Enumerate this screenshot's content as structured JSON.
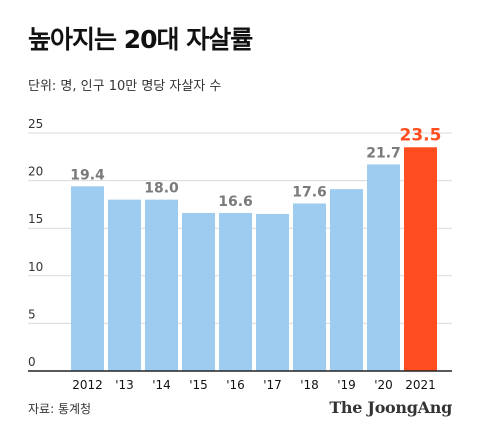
{
  "header": {
    "title": "높아지는 20대 자살률",
    "unit_note": "단위: 명, 인구 10만 명당 자살자 수"
  },
  "footer": {
    "source": "자료: 통계청",
    "brand": "The JoongAng"
  },
  "colors": {
    "bar": "#9dccf0",
    "highlight": "#ff4d1f",
    "gridline": "#d9d9d9",
    "label": "#7a7a7a",
    "axis": "#222222"
  },
  "chart_data": {
    "type": "bar",
    "categories": [
      "2012",
      "'13",
      "'14",
      "'15",
      "'16",
      "'17",
      "'18",
      "'19",
      "'20",
      "2021"
    ],
    "values": [
      19.4,
      18.0,
      18.0,
      16.6,
      16.6,
      16.5,
      17.6,
      19.1,
      21.7,
      23.5
    ],
    "data_labels": [
      "19.4",
      "",
      "18.0",
      "",
      "16.6",
      "",
      "17.6",
      "",
      "21.7",
      "23.5"
    ],
    "highlight_index": 9,
    "ylim": [
      0,
      25
    ],
    "yticks": [
      0,
      5,
      10,
      15,
      20,
      25
    ],
    "grid": true,
    "title": "높아지는 20대 자살률",
    "xlabel": "",
    "ylabel": ""
  }
}
